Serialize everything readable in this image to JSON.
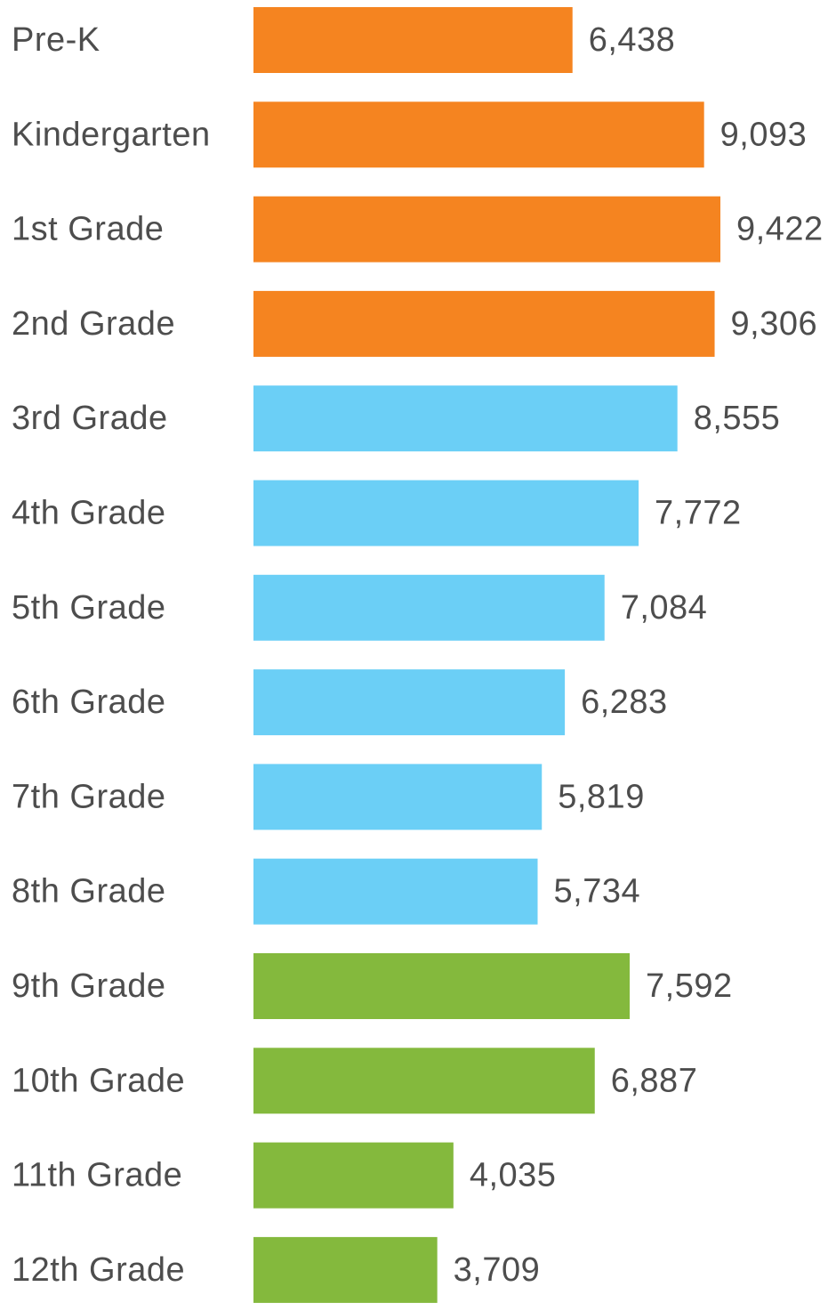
{
  "chart_data": {
    "type": "bar",
    "orientation": "horizontal",
    "categories": [
      "Pre-K",
      "Kindergarten",
      "1st Grade",
      "2nd Grade",
      "3rd Grade",
      "4th Grade",
      "5th Grade",
      "6th Grade",
      "7th Grade",
      "8th Grade",
      "9th Grade",
      "10th Grade",
      "11th Grade",
      "12th Grade"
    ],
    "values": [
      6438,
      9093,
      9422,
      9306,
      8555,
      7772,
      7084,
      6283,
      5819,
      5734,
      7592,
      6887,
      4035,
      3709
    ],
    "value_labels": [
      "6,438",
      "9,093",
      "9,422",
      "9,306",
      "8,555",
      "7,772",
      "7,084",
      "6,283",
      "5,819",
      "5,734",
      "7,592",
      "6,887",
      "4,035",
      "3,709"
    ],
    "bar_colors": [
      "#f58420",
      "#f58420",
      "#f58420",
      "#f58420",
      "#6bcff6",
      "#6bcff6",
      "#6bcff6",
      "#6bcff6",
      "#6bcff6",
      "#6bcff6",
      "#84b93d",
      "#84b93d",
      "#84b93d",
      "#84b93d"
    ],
    "xlim": [
      0,
      9422
    ],
    "grid": false,
    "title": "",
    "xlabel": "",
    "ylabel": ""
  }
}
